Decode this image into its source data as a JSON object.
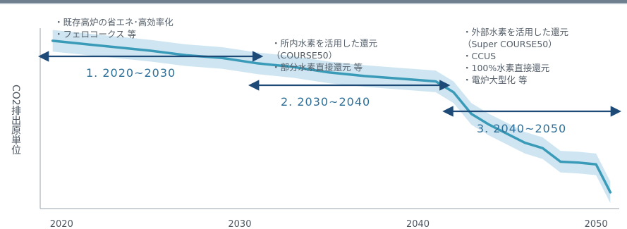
{
  "chart_data": {
    "type": "line",
    "title": "",
    "xlabel": "",
    "ylabel": "CO2排出原単位",
    "xlim": [
      2018.8,
      2051.3
    ],
    "ylim": [
      0,
      100
    ],
    "x_ticks": [
      "2020",
      "2030",
      "2040",
      "2050"
    ],
    "grid": false,
    "series": [
      {
        "name": "",
        "color": "#3a9bb8",
        "band_color": "#cfe6f2",
        "band_halfwidth": 6,
        "x": [
          2019.5,
          2021,
          2023,
          2025,
          2027,
          2029,
          2031,
          2033,
          2035,
          2037,
          2039,
          2041,
          2042,
          2043,
          2044,
          2045,
          2046,
          2047,
          2048,
          2049,
          2050,
          2050.8
        ],
        "y": [
          93,
          91.5,
          89.5,
          87.5,
          85,
          83.5,
          80.5,
          78.5,
          75.5,
          73.5,
          72,
          70.5,
          64.5,
          52.5,
          46.5,
          41.5,
          36.5,
          33.5,
          26,
          25.5,
          24.5,
          9
        ]
      }
    ],
    "phases": [
      {
        "label": "1. 2020~2030",
        "range": [
          2018.8,
          2031.2
        ],
        "arrow": "both",
        "notes": [
          "・既存高炉の省エネ･高効率化",
          "・フェロコークス 等"
        ]
      },
      {
        "label": "2. 2030~2040",
        "range": [
          2030.6,
          2041.7
        ],
        "arrow": "both",
        "notes": [
          "・所内水素を活用した還元",
          "（COURSE50）",
          "・部分水素直接還元 等"
        ]
      },
      {
        "label": "3. 2040~2050",
        "range": [
          2041.5,
          2051.3
        ],
        "arrow": "both",
        "notes": [
          "・外部水素を活用した還元",
          "（Super COURSE50）",
          "・CCUS",
          "・100%水素直接還元",
          "・電炉大型化 等"
        ]
      }
    ]
  }
}
